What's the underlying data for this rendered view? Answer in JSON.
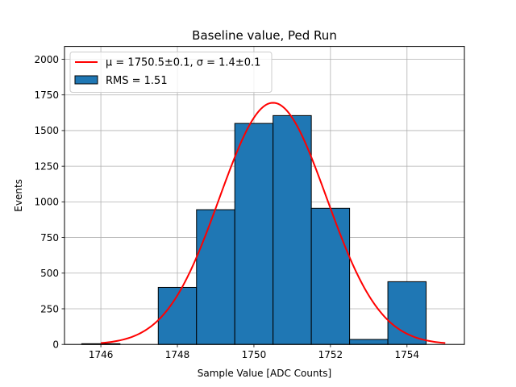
{
  "chart_data": {
    "type": "bar",
    "title": "Baseline value, Ped Run",
    "xlabel": "Sample Value [ADC Counts]",
    "ylabel": "Events",
    "xlim": [
      1745.05,
      1755.5
    ],
    "ylim": [
      0,
      2090
    ],
    "xticks": [
      1746,
      1748,
      1750,
      1752,
      1754
    ],
    "yticks": [
      0,
      250,
      500,
      750,
      1000,
      1250,
      1500,
      1750,
      2000
    ],
    "grid": true,
    "legend_position": "top-left",
    "histogram": {
      "name": "RMS = 1.51",
      "color": "#1f77b4",
      "edgecolor": "#000000",
      "bins": [
        {
          "left": 1745.5,
          "right": 1746.5,
          "value": 5
        },
        {
          "left": 1746.5,
          "right": 1747.5,
          "value": 0
        },
        {
          "left": 1747.5,
          "right": 1748.5,
          "value": 400
        },
        {
          "left": 1748.5,
          "right": 1749.5,
          "value": 945
        },
        {
          "left": 1749.5,
          "right": 1750.5,
          "value": 1550
        },
        {
          "left": 1750.5,
          "right": 1751.5,
          "value": 1605
        },
        {
          "left": 1751.5,
          "right": 1752.5,
          "value": 955
        },
        {
          "left": 1752.5,
          "right": 1753.5,
          "value": 35
        },
        {
          "left": 1753.5,
          "right": 1754.5,
          "value": 440
        }
      ]
    },
    "fit": {
      "name": "μ = 1750.5±0.1, σ = 1.4±0.1",
      "color": "#ff0000",
      "amplitude": 1695,
      "mean": 1750.5,
      "sigma": 1.4,
      "x_range": [
        1746,
        1755
      ]
    }
  }
}
